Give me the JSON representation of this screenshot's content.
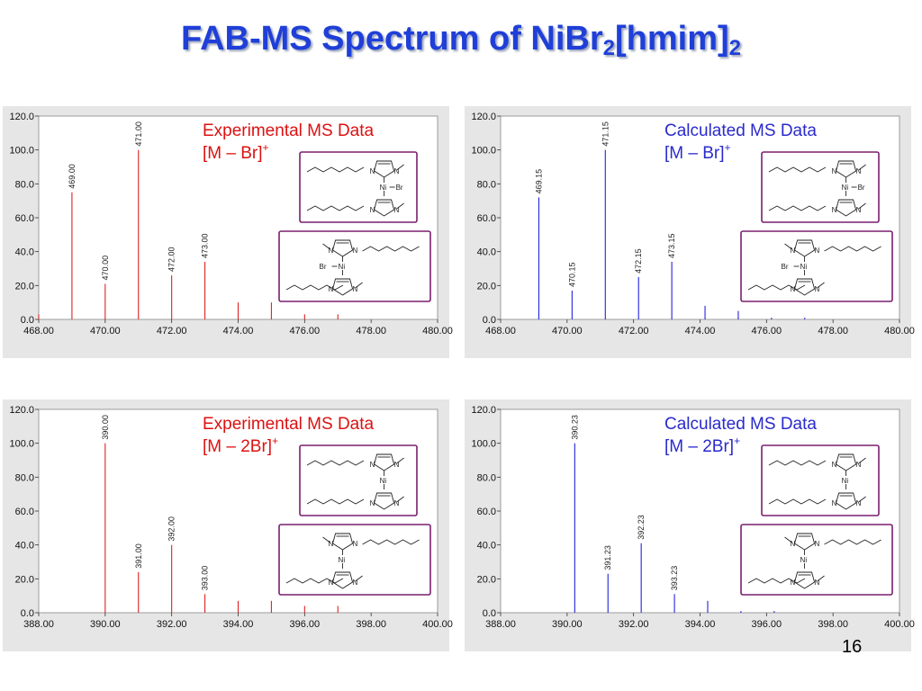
{
  "slide": {
    "title_main": "FAB-MS Spectrum of NiBr",
    "title_sub1": "2",
    "title_mid": "[hmim]",
    "title_sub2": "2",
    "page_number": "16"
  },
  "colors": {
    "experimental": "#dd2222",
    "calculated": "#2222dd",
    "title": "#1f3fd8",
    "structure_frame": "#7a1f6e"
  },
  "chart_data": [
    {
      "type": "bar",
      "panel": "top-left",
      "color": "#dd2222",
      "xlim": [
        468,
        480
      ],
      "ylim": [
        0,
        120
      ],
      "xticks": [
        "468.00",
        "470.00",
        "472.00",
        "474.00",
        "476.00",
        "478.00",
        "480.00"
      ],
      "yticks": [
        "0.0",
        "20.0",
        "40.0",
        "60.0",
        "80.0",
        "100.0",
        "120.0"
      ],
      "peaks": [
        {
          "x": 468.0,
          "y": 3,
          "label": ""
        },
        {
          "x": 469.0,
          "y": 75,
          "label": "469.00"
        },
        {
          "x": 470.0,
          "y": 21,
          "label": "470.00"
        },
        {
          "x": 471.0,
          "y": 100,
          "label": "471.00"
        },
        {
          "x": 472.0,
          "y": 26,
          "label": "472.00"
        },
        {
          "x": 473.0,
          "y": 34,
          "label": "473.00"
        },
        {
          "x": 474.0,
          "y": 10,
          "label": ""
        },
        {
          "x": 475.0,
          "y": 10,
          "label": ""
        },
        {
          "x": 476.0,
          "y": 3,
          "label": ""
        },
        {
          "x": 477.0,
          "y": 3,
          "label": ""
        }
      ],
      "caption_line1": "Experimental MS Data",
      "caption_line2": "[M – Br]",
      "caption_sup": "+"
    },
    {
      "type": "bar",
      "panel": "top-right",
      "color": "#2222dd",
      "xlim": [
        468,
        480
      ],
      "ylim": [
        0,
        120
      ],
      "xticks": [
        "468.00",
        "470.00",
        "472.00",
        "474.00",
        "476.00",
        "478.00",
        "480.00"
      ],
      "yticks": [
        "0.0",
        "20.0",
        "40.0",
        "60.0",
        "80.0",
        "100.0",
        "120.0"
      ],
      "peaks": [
        {
          "x": 469.15,
          "y": 72,
          "label": "469.15"
        },
        {
          "x": 470.15,
          "y": 17,
          "label": "470.15"
        },
        {
          "x": 471.15,
          "y": 100,
          "label": "471.15"
        },
        {
          "x": 472.15,
          "y": 25,
          "label": "472.15"
        },
        {
          "x": 473.15,
          "y": 34,
          "label": "473.15"
        },
        {
          "x": 474.15,
          "y": 8,
          "label": ""
        },
        {
          "x": 475.15,
          "y": 5,
          "label": ""
        },
        {
          "x": 476.15,
          "y": 1,
          "label": ""
        },
        {
          "x": 477.15,
          "y": 1,
          "label": ""
        }
      ],
      "caption_line1": "Calculated MS Data",
      "caption_line2": "[M – Br]",
      "caption_sup": "+"
    },
    {
      "type": "bar",
      "panel": "bottom-left",
      "color": "#dd2222",
      "xlim": [
        388,
        400
      ],
      "ylim": [
        0,
        120
      ],
      "xticks": [
        "388.00",
        "390.00",
        "392.00",
        "394.00",
        "396.00",
        "398.00",
        "400.00"
      ],
      "yticks": [
        "0.0",
        "20.0",
        "40.0",
        "60.0",
        "80.0",
        "100.0",
        "120.0"
      ],
      "peaks": [
        {
          "x": 390.0,
          "y": 100,
          "label": "390.00"
        },
        {
          "x": 391.0,
          "y": 24,
          "label": "391.00"
        },
        {
          "x": 392.0,
          "y": 40,
          "label": "392.00"
        },
        {
          "x": 393.0,
          "y": 11,
          "label": "393.00"
        },
        {
          "x": 394.0,
          "y": 7,
          "label": ""
        },
        {
          "x": 395.0,
          "y": 7,
          "label": ""
        },
        {
          "x": 396.0,
          "y": 4,
          "label": ""
        },
        {
          "x": 397.0,
          "y": 4,
          "label": ""
        }
      ],
      "caption_line1": "Experimental MS Data",
      "caption_line2": "[M – 2Br]",
      "caption_sup": "+"
    },
    {
      "type": "bar",
      "panel": "bottom-right",
      "color": "#2222dd",
      "xlim": [
        388,
        400
      ],
      "ylim": [
        0,
        120
      ],
      "xticks": [
        "388.00",
        "390.00",
        "392.00",
        "394.00",
        "396.00",
        "398.00",
        "400.00"
      ],
      "yticks": [
        "0.0",
        "20.0",
        "40.0",
        "60.0",
        "80.0",
        "100.0",
        "120.0"
      ],
      "peaks": [
        {
          "x": 390.23,
          "y": 100,
          "label": "390.23"
        },
        {
          "x": 391.23,
          "y": 23,
          "label": "391.23"
        },
        {
          "x": 392.23,
          "y": 41,
          "label": "392.23"
        },
        {
          "x": 393.23,
          "y": 11,
          "label": "393.23"
        },
        {
          "x": 394.23,
          "y": 7,
          "label": ""
        },
        {
          "x": 395.23,
          "y": 1,
          "label": ""
        },
        {
          "x": 396.23,
          "y": 1,
          "label": ""
        }
      ],
      "caption_line1": "Calculated MS Data",
      "caption_line2": "[M – 2Br]",
      "caption_sup": "+"
    }
  ],
  "structures": {
    "atom_n": "N",
    "atom_ni": "Ni",
    "atom_br": "Br"
  }
}
